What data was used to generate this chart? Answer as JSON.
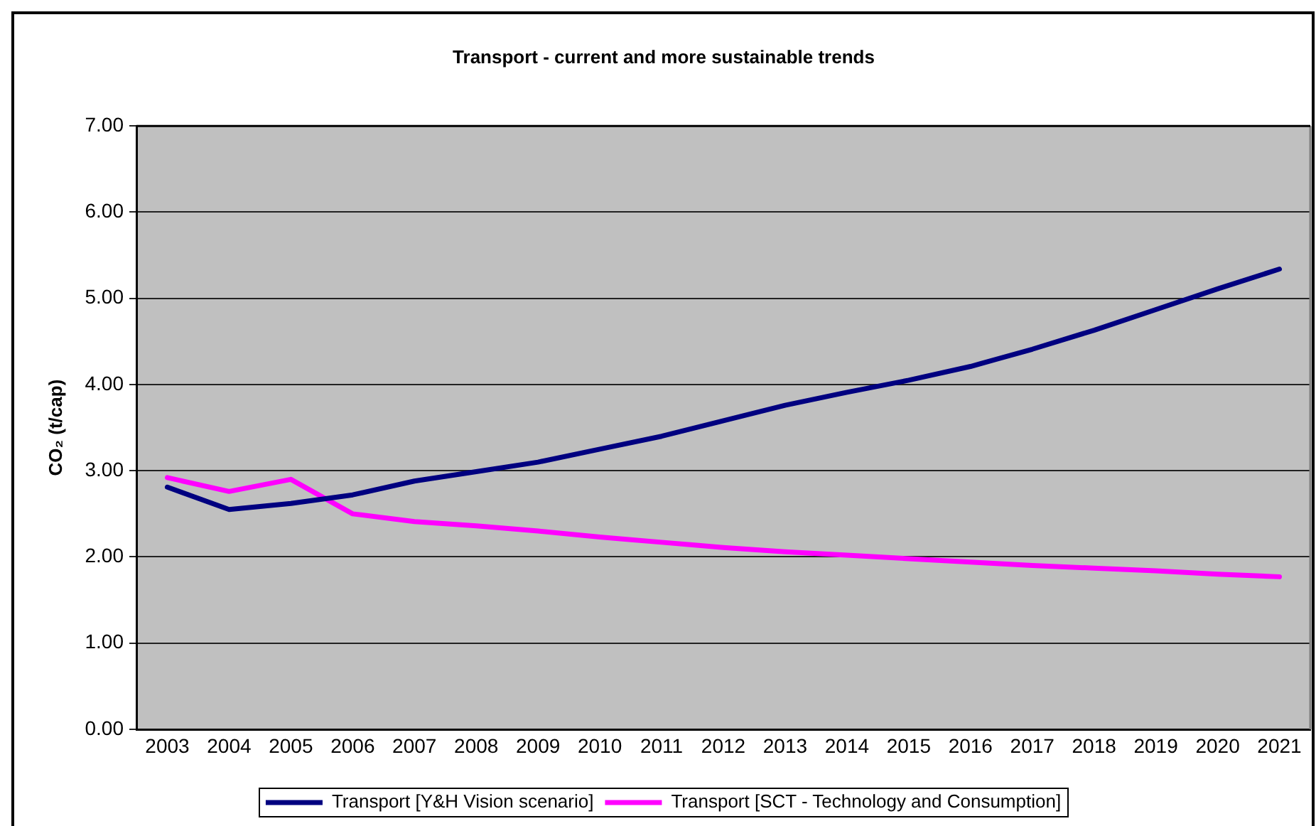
{
  "chart_data": {
    "type": "line",
    "title": "Transport - current and more sustainable trends",
    "ylabel": "CO₂ (t/cap)",
    "categories": [
      "2003",
      "2004",
      "2005",
      "2006",
      "2007",
      "2008",
      "2009",
      "2010",
      "2011",
      "2012",
      "2013",
      "2014",
      "2015",
      "2016",
      "2017",
      "2018",
      "2019",
      "2020",
      "2021"
    ],
    "series": [
      {
        "name": "Transport [Y&H Vision scenario]",
        "color": "#000080",
        "values": [
          2.81,
          2.55,
          2.62,
          2.72,
          2.88,
          2.99,
          3.1,
          3.25,
          3.4,
          3.58,
          3.76,
          3.91,
          4.05,
          4.21,
          4.41,
          4.63,
          4.87,
          5.11,
          5.34
        ]
      },
      {
        "name": "Transport [SCT - Technology and Consumption]",
        "color": "#ff00ff",
        "values": [
          2.92,
          2.76,
          2.9,
          2.5,
          2.41,
          2.36,
          2.3,
          2.23,
          2.17,
          2.11,
          2.06,
          2.02,
          1.98,
          1.94,
          1.9,
          1.87,
          1.84,
          1.8,
          1.77
        ]
      }
    ],
    "ylim": [
      0,
      7
    ],
    "yticks": [
      {
        "value": 0,
        "label": "0.00"
      },
      {
        "value": 1,
        "label": "1.00"
      },
      {
        "value": 2,
        "label": "2.00"
      },
      {
        "value": 3,
        "label": "3.00"
      },
      {
        "value": 4,
        "label": "4.00"
      },
      {
        "value": 5,
        "label": "5.00"
      },
      {
        "value": 6,
        "label": "6.00"
      },
      {
        "value": 7,
        "label": "7.00"
      }
    ],
    "grid": "y",
    "legend": "bottom"
  }
}
